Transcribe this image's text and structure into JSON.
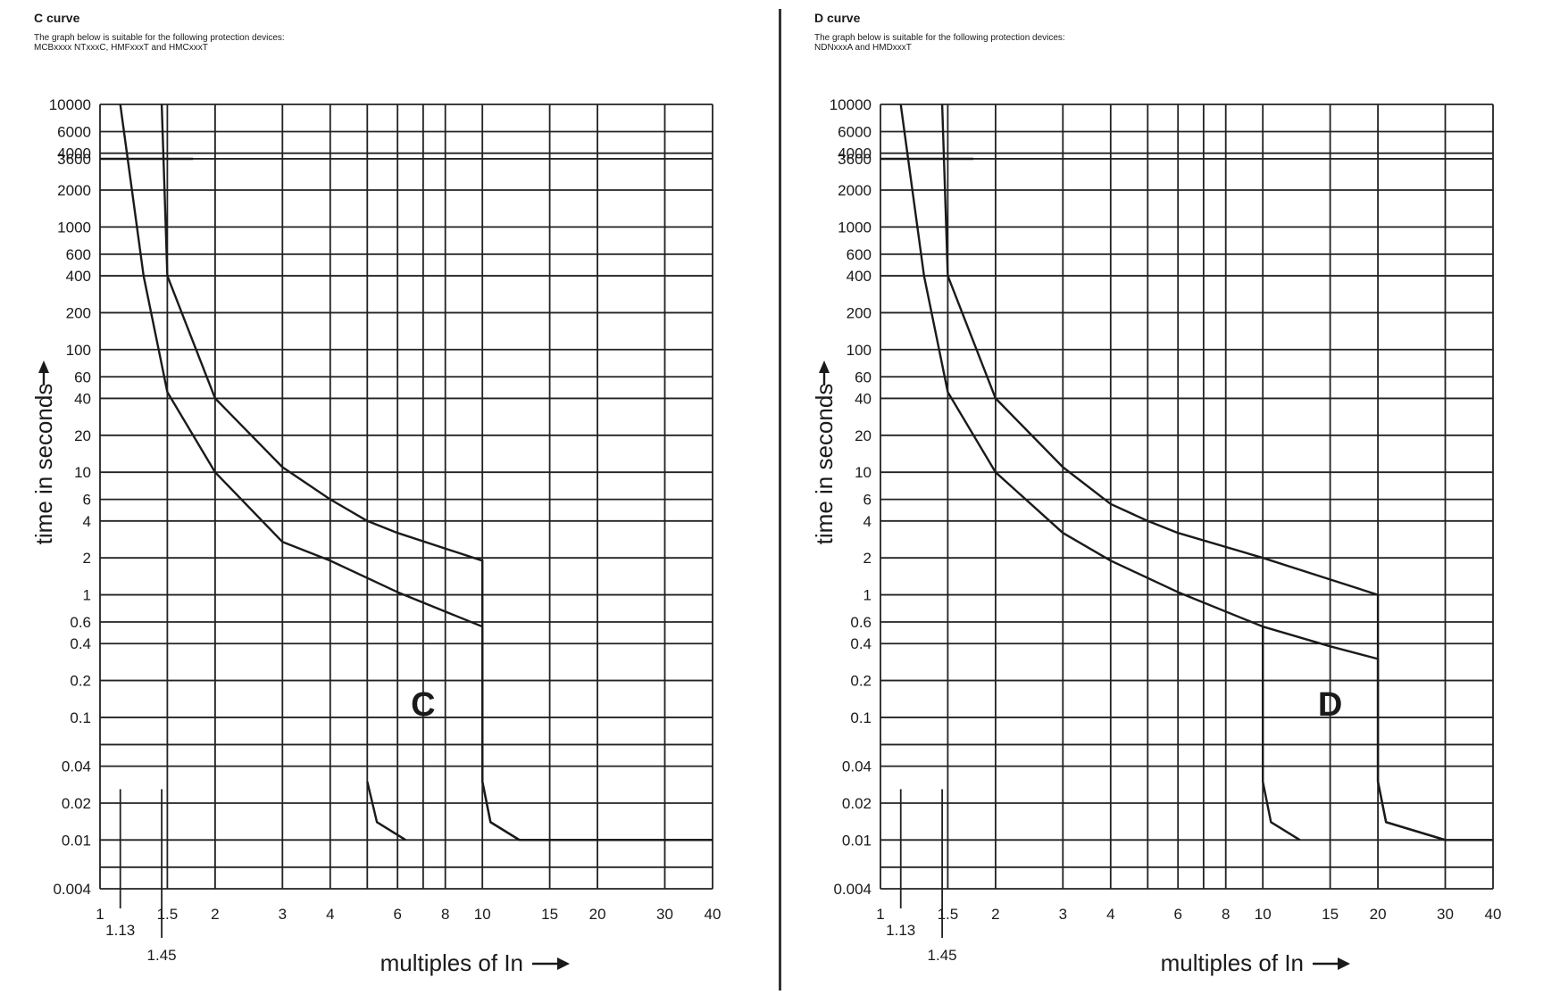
{
  "chart_data": [
    {
      "type": "line",
      "title": "C curve",
      "subtitle": "The graph below is suitable for the following protection devices:\nMCBxxxx NTxxxC, HMFxxxT and HMCxxxT",
      "curve_label": "C",
      "xlabel": "multiples of In",
      "ylabel": "time in seconds",
      "x_scale": "log",
      "y_scale": "log",
      "xlim": [
        1,
        40
      ],
      "ylim": [
        0.004,
        10000
      ],
      "grid": true,
      "x_ticks": [
        1,
        1.5,
        2,
        3,
        4,
        6,
        8,
        10,
        15,
        20,
        30,
        40
      ],
      "x_tick_labels": [
        "1",
        "1.5",
        "2",
        "3",
        "4",
        "6",
        "8",
        "10",
        "15",
        "20",
        "30",
        "40"
      ],
      "x_gridlines": [
        1,
        1.5,
        2,
        3,
        4,
        5,
        6,
        7,
        8,
        10,
        15,
        20,
        30,
        40
      ],
      "x_markers": [
        {
          "x": 1.13,
          "label": "1.13"
        },
        {
          "x": 1.45,
          "label": "1.45"
        }
      ],
      "y_ticks": [
        10000,
        6000,
        4000,
        3600,
        2000,
        1000,
        600,
        400,
        200,
        100,
        60,
        40,
        20,
        10,
        6,
        4,
        2,
        1,
        0.6,
        0.4,
        0.2,
        0.1,
        0.04,
        0.02,
        0.01,
        0.004
      ],
      "y_tick_labels": [
        "10000",
        "6000",
        "4000",
        "3600",
        "2000",
        "1000",
        "600",
        "400",
        "200",
        "100",
        "60",
        "40",
        "20",
        "10",
        "6",
        "4",
        "2",
        "1",
        "0.6",
        "0.4",
        "0.2",
        "0.1",
        "0.04",
        "0.02",
        "0.01",
        "0.004"
      ],
      "y_gridlines": [
        10000,
        6000,
        4000,
        3600,
        2000,
        1000,
        600,
        400,
        200,
        100,
        60,
        40,
        20,
        10,
        6,
        4,
        2,
        1,
        0.6,
        0.4,
        0.2,
        0.1,
        0.06,
        0.04,
        0.02,
        0.01,
        0.006,
        0.004
      ],
      "series": [
        {
          "points": [
            [
              1.13,
              10000
            ],
            [
              1.3,
              400
            ],
            [
              1.5,
              45
            ],
            [
              2,
              10
            ],
            [
              3,
              2.7
            ],
            [
              4,
              1.9
            ],
            [
              6,
              1.05
            ],
            [
              10,
              0.55
            ],
            [
              10,
              0.03
            ],
            [
              10.5,
              0.014
            ],
            [
              12.5,
              0.01
            ],
            [
              40,
              0.01
            ]
          ]
        },
        {
          "points": [
            [
              1.45,
              10000
            ],
            [
              1.5,
              400
            ],
            [
              2,
              40
            ],
            [
              3,
              11
            ],
            [
              4,
              6
            ],
            [
              5,
              4
            ],
            [
              6,
              3.2
            ],
            [
              10,
              1.9
            ],
            [
              10,
              0.03
            ],
            [
              10.5,
              0.014
            ],
            [
              12.5,
              0.01
            ],
            [
              40,
              0.01
            ]
          ]
        },
        {
          "points": [
            [
              5,
              0.03
            ],
            [
              5.3,
              0.014
            ],
            [
              6.3,
              0.01
            ]
          ]
        },
        {
          "points": [
            [
              1,
              3600
            ],
            [
              1.75,
              3600
            ]
          ]
        }
      ]
    },
    {
      "type": "line",
      "title": "D curve",
      "subtitle": "The graph below is suitable for the following protection devices:\nNDNxxxA and HMDxxxT",
      "curve_label": "D",
      "xlabel": "multiples of In",
      "ylabel": "time in seconds",
      "x_scale": "log",
      "y_scale": "log",
      "xlim": [
        1,
        40
      ],
      "ylim": [
        0.004,
        10000
      ],
      "grid": true,
      "x_ticks": [
        1,
        1.5,
        2,
        3,
        4,
        6,
        8,
        10,
        15,
        20,
        30,
        40
      ],
      "x_tick_labels": [
        "1",
        "1.5",
        "2",
        "3",
        "4",
        "6",
        "8",
        "10",
        "15",
        "20",
        "30",
        "40"
      ],
      "x_gridlines": [
        1,
        1.5,
        2,
        3,
        4,
        5,
        6,
        7,
        8,
        10,
        15,
        20,
        30,
        40
      ],
      "x_markers": [
        {
          "x": 1.13,
          "label": "1.13"
        },
        {
          "x": 1.45,
          "label": "1.45"
        }
      ],
      "y_ticks": [
        10000,
        6000,
        4000,
        3600,
        2000,
        1000,
        600,
        400,
        200,
        100,
        60,
        40,
        20,
        10,
        6,
        4,
        2,
        1,
        0.6,
        0.4,
        0.2,
        0.1,
        0.04,
        0.02,
        0.01,
        0.004
      ],
      "y_tick_labels": [
        "10000",
        "6000",
        "4000",
        "3600",
        "2000",
        "1000",
        "600",
        "400",
        "200",
        "100",
        "60",
        "40",
        "20",
        "10",
        "6",
        "4",
        "2",
        "1",
        "0.6",
        "0.4",
        "0.2",
        "0.1",
        "0.04",
        "0.02",
        "0.01",
        "0.004"
      ],
      "y_gridlines": [
        10000,
        6000,
        4000,
        3600,
        2000,
        1000,
        600,
        400,
        200,
        100,
        60,
        40,
        20,
        10,
        6,
        4,
        2,
        1,
        0.6,
        0.4,
        0.2,
        0.1,
        0.06,
        0.04,
        0.02,
        0.01,
        0.006,
        0.004
      ],
      "series": [
        {
          "points": [
            [
              1.13,
              10000
            ],
            [
              1.3,
              400
            ],
            [
              1.5,
              45
            ],
            [
              2,
              10
            ],
            [
              3,
              3.2
            ],
            [
              4,
              1.9
            ],
            [
              6,
              1.05
            ],
            [
              10,
              0.55
            ],
            [
              15,
              0.38
            ],
            [
              20,
              0.3
            ],
            [
              20,
              0.03
            ],
            [
              21,
              0.014
            ],
            [
              30,
              0.01
            ],
            [
              40,
              0.01
            ]
          ]
        },
        {
          "points": [
            [
              1.45,
              10000
            ],
            [
              1.5,
              400
            ],
            [
              2,
              40
            ],
            [
              3,
              11
            ],
            [
              4,
              5.5
            ],
            [
              5,
              4
            ],
            [
              6,
              3.2
            ],
            [
              10,
              2
            ],
            [
              20,
              1
            ],
            [
              20,
              0.03
            ],
            [
              21,
              0.014
            ],
            [
              30,
              0.01
            ]
          ]
        },
        {
          "points": [
            [
              10,
              0.55
            ],
            [
              10,
              0.03
            ],
            [
              10.5,
              0.014
            ],
            [
              12.5,
              0.01
            ]
          ]
        },
        {
          "points": [
            [
              1,
              3600
            ],
            [
              1.75,
              3600
            ]
          ]
        }
      ]
    }
  ]
}
